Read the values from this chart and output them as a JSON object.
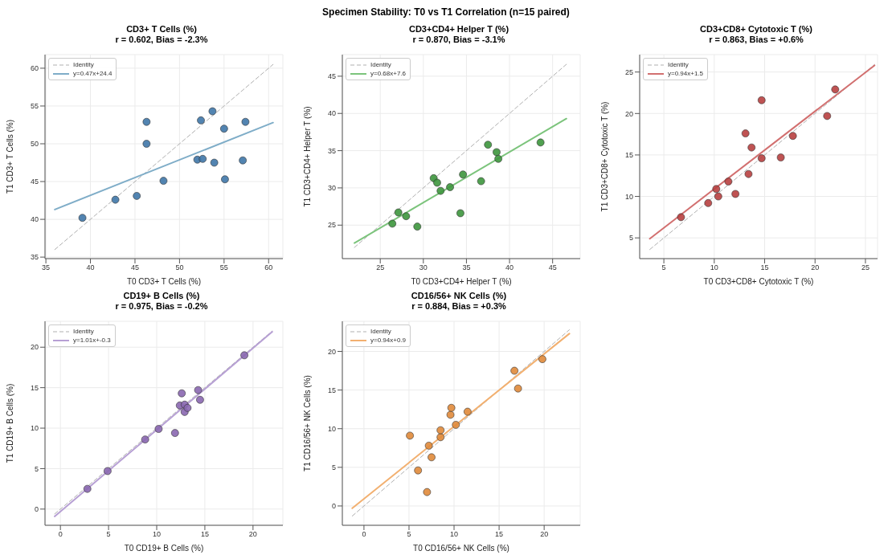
{
  "chart_data": [
    {
      "type": "scatter",
      "title": "CD3+ T Cells (%)",
      "subtitle": "r = 0.602, Bias = -2.3%",
      "xlabel": "T0 CD3+ T Cells (%)",
      "ylabel": "T1 CD3+ T Cells (%)",
      "annotations": [
        "Specimen Stability: T0 vs T1 Correlation (n=15 paired)"
      ],
      "xlim": [
        34.9,
        61.6
      ],
      "ylim": [
        34.8,
        61.8
      ],
      "xticks": [
        35,
        40,
        45,
        50,
        55,
        60
      ],
      "yticks": [
        35,
        40,
        45,
        50,
        55,
        60
      ],
      "grid": true,
      "legend": "top left",
      "series": [
        {
          "name": "Identity",
          "type": "line",
          "color": "#b0b0b0",
          "line_style": "dashed",
          "marker": "none",
          "x": [
            36,
            60.5
          ],
          "values": [
            36,
            60.5
          ]
        },
        {
          "name": "y=0.47x+24.4",
          "type": "line",
          "color": "#7fadc8",
          "line_style": "solid",
          "marker": "none",
          "x": [
            36,
            60.5
          ],
          "values": [
            41.3,
            52.8
          ]
        },
        {
          "type": "scatter",
          "color": "#3f77a8",
          "marker": "circle",
          "x": [
            39.1,
            42.8,
            45.2,
            46.3,
            46.3,
            48.2,
            52.0,
            52.6,
            52.4,
            53.7,
            53.9,
            55.0,
            55.1,
            57.1,
            57.4
          ],
          "values": [
            40.2,
            42.6,
            43.1,
            52.9,
            50.0,
            45.1,
            47.9,
            48.0,
            53.1,
            54.3,
            47.5,
            52.0,
            45.3,
            47.8,
            52.9
          ]
        }
      ]
    },
    {
      "type": "scatter",
      "title": "CD3+CD4+ Helper T (%)",
      "subtitle": "r = 0.870, Bias = -3.1%",
      "xlabel": "T0 CD3+CD4+ Helper T (%)",
      "ylabel": "T1 CD3+CD4+ Helper T (%)",
      "xlim": [
        20.6,
        48.2
      ],
      "ylim": [
        20.5,
        47.9
      ],
      "xticks": [
        25,
        30,
        35,
        40,
        45
      ],
      "yticks": [
        25,
        30,
        35,
        40,
        45
      ],
      "grid": true,
      "legend": "top left",
      "series": [
        {
          "name": "Identity",
          "type": "line",
          "color": "#b0b0b0",
          "line_style": "dashed",
          "marker": "none",
          "x": [
            22,
            46.6
          ],
          "values": [
            22,
            46.6
          ]
        },
        {
          "name": "y=0.68x+7.6",
          "type": "line",
          "color": "#7cc47c",
          "line_style": "solid",
          "marker": "none",
          "x": [
            22,
            46.6
          ],
          "values": [
            22.6,
            39.3
          ]
        },
        {
          "type": "scatter",
          "color": "#3d963d",
          "marker": "circle",
          "x": [
            26.4,
            27.1,
            28.0,
            29.3,
            31.2,
            31.6,
            32.0,
            33.1,
            34.3,
            34.6,
            36.7,
            37.5,
            38.5,
            38.7,
            43.6
          ],
          "values": [
            25.2,
            26.7,
            26.2,
            24.8,
            31.3,
            30.7,
            29.6,
            30.1,
            26.6,
            31.8,
            30.9,
            35.8,
            34.8,
            33.9,
            36.1
          ]
        }
      ]
    },
    {
      "type": "scatter",
      "title": "CD3+CD8+ Cytotoxic T (%)",
      "subtitle": "r = 0.863, Bias = +0.6%",
      "xlabel": "T0 CD3+CD8+ Cytotoxic T (%)",
      "ylabel": "T1 CD3+CD8+ Cytotoxic T (%)",
      "xlim": [
        2.6,
        26.2
      ],
      "ylim": [
        2.5,
        27.1
      ],
      "xticks": [
        5,
        10,
        15,
        20,
        25
      ],
      "yticks": [
        5,
        10,
        15,
        20,
        25
      ],
      "grid": true,
      "legend": "top left",
      "series": [
        {
          "name": "Identity",
          "type": "line",
          "color": "#b0b0b0",
          "line_style": "dashed",
          "marker": "none",
          "x": [
            3.6,
            25.9
          ],
          "values": [
            3.6,
            25.9
          ]
        },
        {
          "name": "y=0.94x+1.5",
          "type": "line",
          "color": "#d27070",
          "line_style": "solid",
          "marker": "none",
          "x": [
            3.6,
            25.9
          ],
          "values": [
            4.9,
            25.8
          ]
        },
        {
          "type": "scatter",
          "color": "#b84040",
          "marker": "circle",
          "x": [
            6.7,
            9.4,
            10.2,
            10.4,
            11.4,
            12.1,
            13.1,
            13.4,
            13.7,
            14.7,
            14.7,
            16.6,
            17.8,
            21.2,
            22.0
          ],
          "values": [
            7.5,
            9.2,
            10.9,
            10.0,
            11.8,
            10.3,
            17.6,
            12.7,
            15.9,
            21.6,
            14.6,
            14.7,
            17.3,
            19.7,
            22.9
          ]
        }
      ]
    },
    {
      "type": "scatter",
      "title": "CD19+ B Cells (%)",
      "subtitle": "r = 0.975, Bias = -0.2%",
      "xlabel": "T0 CD19+ B Cells (%)",
      "ylabel": "T1 CD19+ B Cells (%)",
      "xlim": [
        -1.6,
        23.1
      ],
      "ylim": [
        -2.0,
        23.2
      ],
      "xticks": [
        0,
        5,
        10,
        15,
        20
      ],
      "yticks": [
        0,
        5,
        10,
        15,
        20
      ],
      "grid": true,
      "legend": "top left",
      "series": [
        {
          "name": "Identity",
          "type": "line",
          "color": "#b0b0b0",
          "line_style": "dashed",
          "marker": "none",
          "x": [
            -0.6,
            22
          ],
          "values": [
            -0.6,
            22
          ]
        },
        {
          "name": "y=1.01x+-0.3",
          "type": "line",
          "color": "#b7a0d4",
          "line_style": "solid",
          "marker": "none",
          "x": [
            -0.6,
            22
          ],
          "values": [
            -0.9,
            21.9
          ]
        },
        {
          "type": "scatter",
          "color": "#8a67b0",
          "marker": "circle",
          "x": [
            2.8,
            4.9,
            8.8,
            10.2,
            11.9,
            12.4,
            12.6,
            12.9,
            12.9,
            13.2,
            14.3,
            14.5,
            19.1
          ],
          "values": [
            2.5,
            4.7,
            8.6,
            9.9,
            9.4,
            12.8,
            14.3,
            12.9,
            12.0,
            12.5,
            14.7,
            13.5,
            19.0
          ]
        }
      ]
    },
    {
      "type": "scatter",
      "title": "CD16/56+ NK Cells (%)",
      "subtitle": "r = 0.884, Bias = +0.3%",
      "xlabel": "T0 CD16/56+ NK Cells (%)",
      "ylabel": "T1 CD16/56+ NK Cells (%)",
      "xlim": [
        -2.4,
        24.0
      ],
      "ylim": [
        -2.5,
        23.9
      ],
      "xticks": [
        0,
        5,
        10,
        15,
        20
      ],
      "yticks": [
        0,
        5,
        10,
        15,
        20
      ],
      "grid": true,
      "legend": "top left",
      "series": [
        {
          "name": "Identity",
          "type": "line",
          "color": "#b0b0b0",
          "line_style": "dashed",
          "marker": "none",
          "x": [
            -1.3,
            22.8
          ],
          "values": [
            -1.3,
            22.8
          ]
        },
        {
          "name": "y=0.94x+0.9",
          "type": "line",
          "color": "#f2b070",
          "line_style": "solid",
          "marker": "none",
          "x": [
            -1.3,
            22.8
          ],
          "values": [
            -0.3,
            22.3
          ]
        },
        {
          "type": "scatter",
          "color": "#e0893a",
          "marker": "circle",
          "x": [
            5.1,
            6.0,
            7.0,
            7.2,
            7.5,
            8.5,
            8.5,
            9.6,
            9.7,
            10.2,
            11.5,
            16.7,
            17.1,
            19.8
          ],
          "values": [
            9.1,
            4.6,
            1.8,
            7.8,
            6.3,
            8.9,
            9.8,
            11.8,
            12.7,
            10.5,
            12.2,
            17.5,
            15.2,
            19.0
          ]
        }
      ]
    }
  ]
}
